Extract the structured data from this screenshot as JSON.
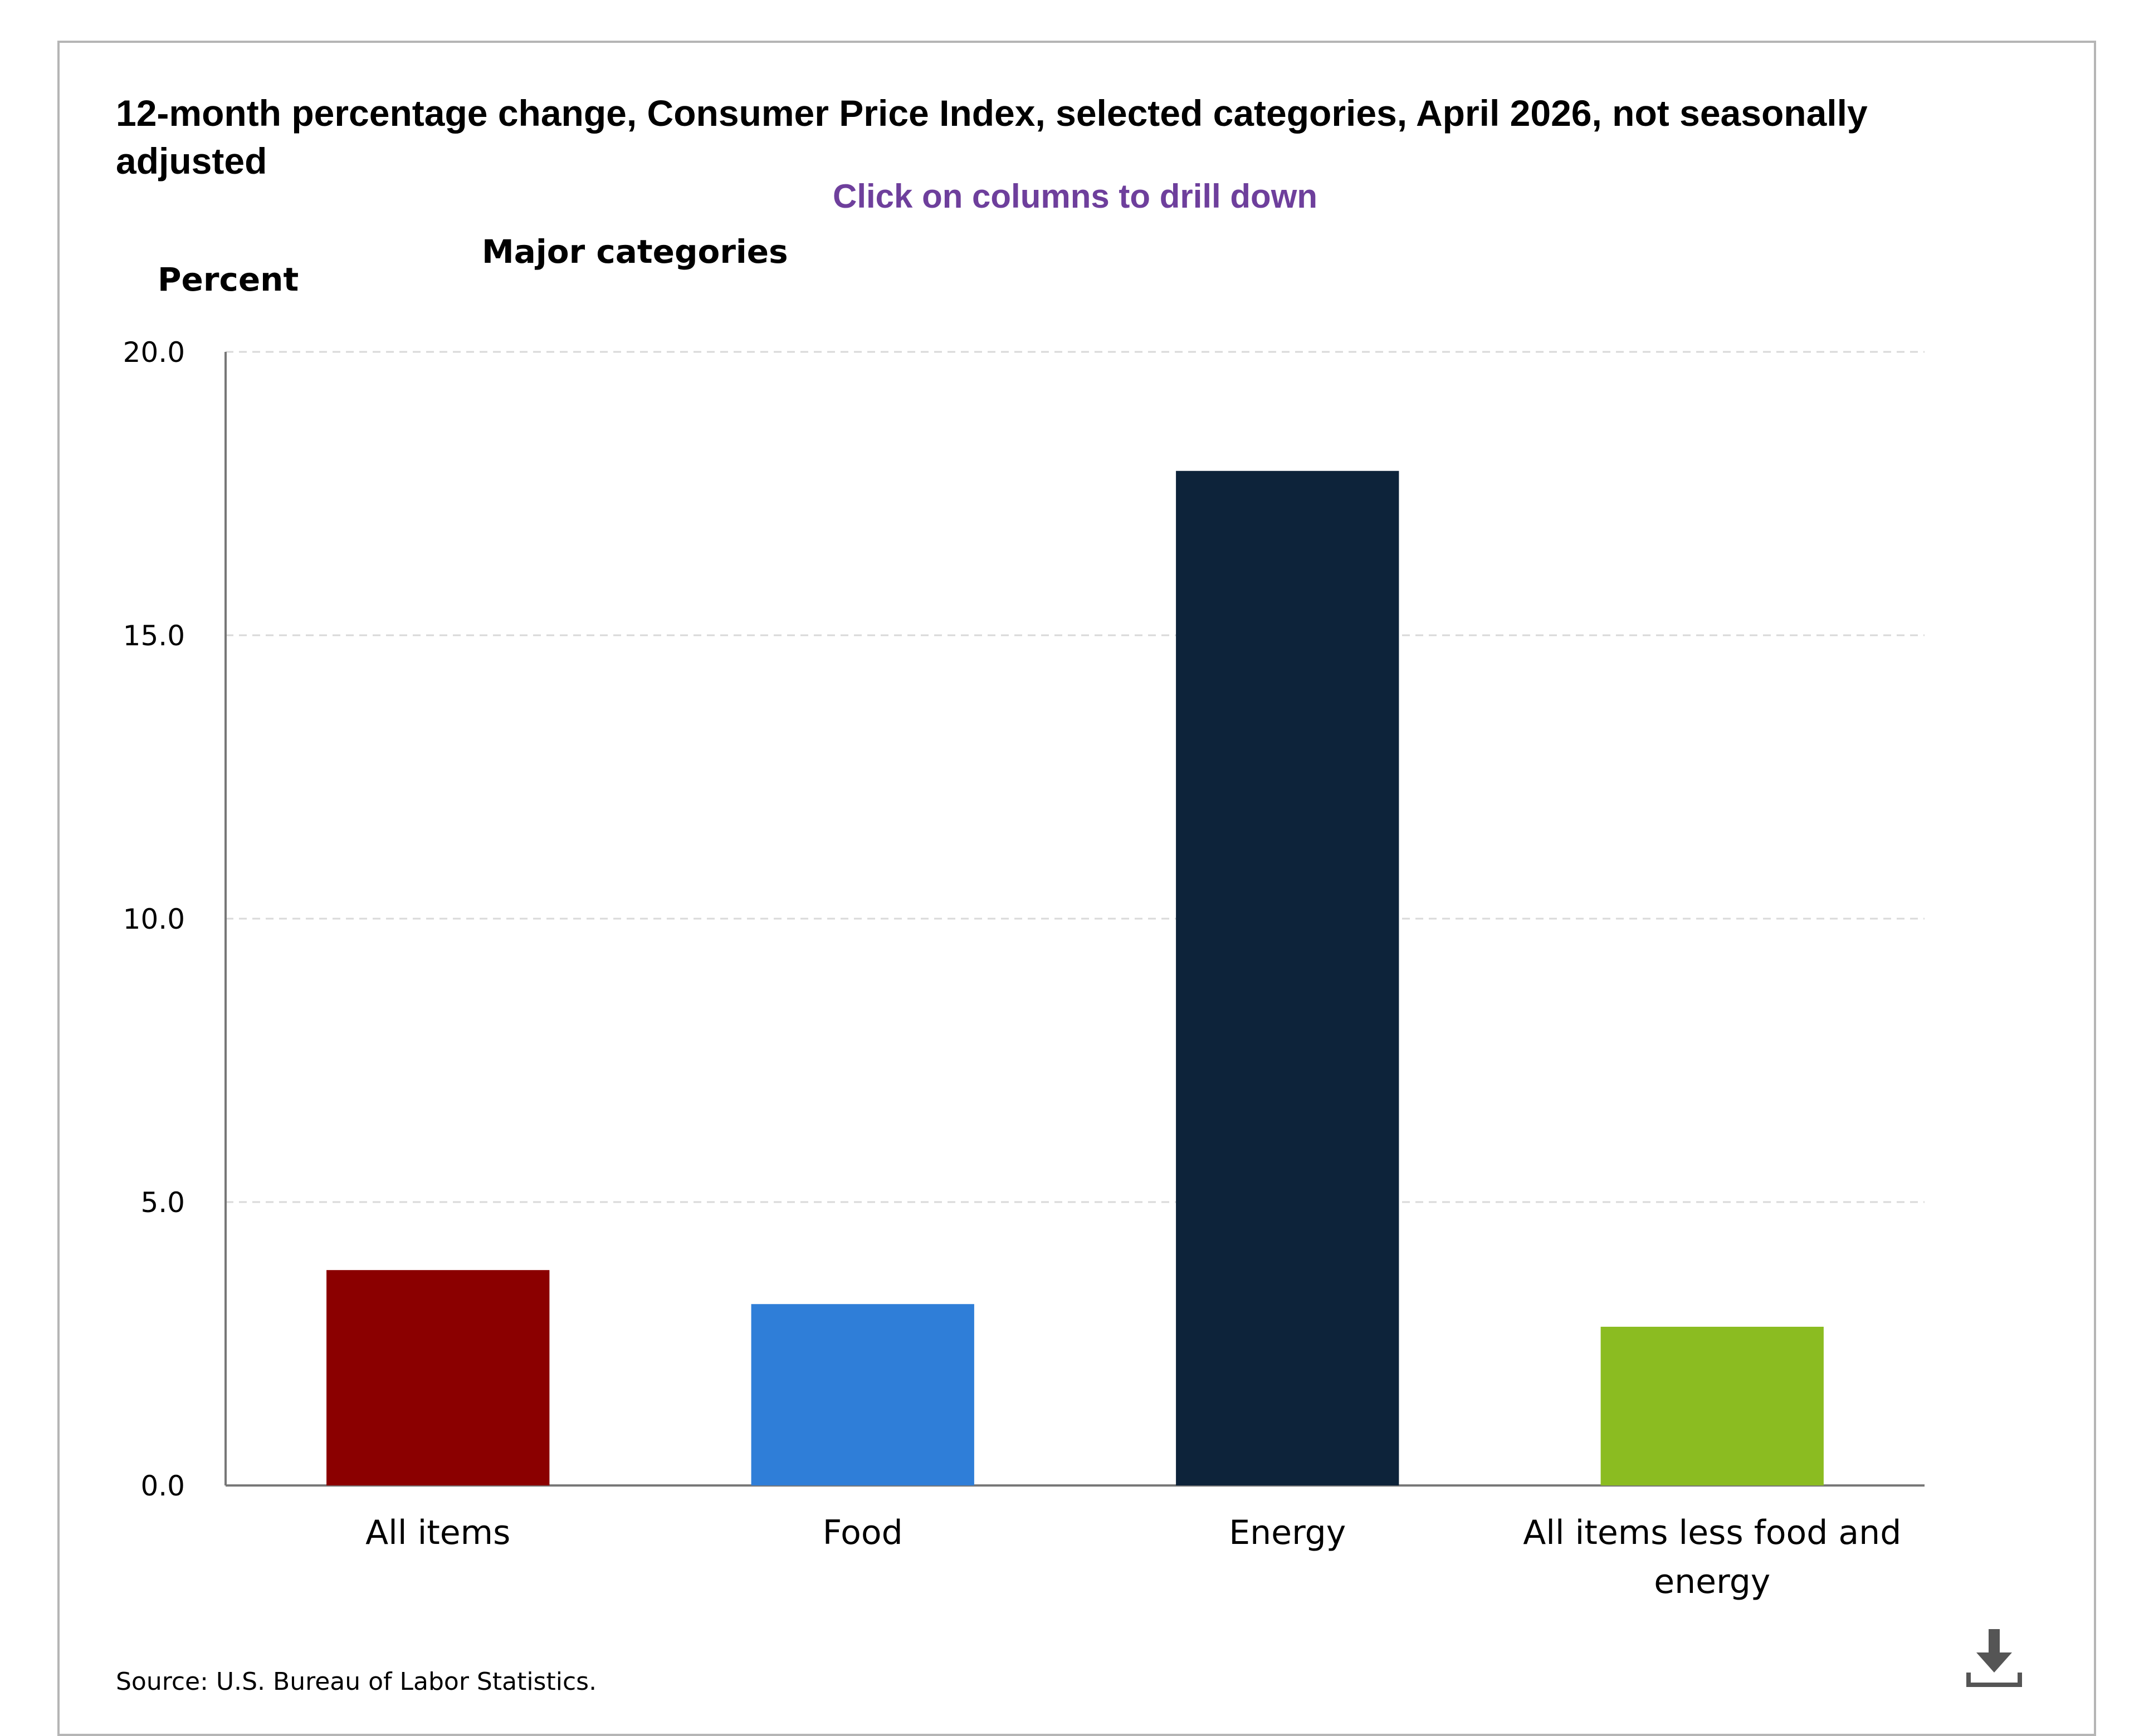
{
  "chart_data": {
    "type": "bar",
    "title": "12-month percentage change, Consumer Price Index, selected categories, April 2026, not seasonally adjusted",
    "subtitle": "Major categories",
    "hint": "Click on columns to drill down",
    "ylabel": "Percent",
    "ylim": [
      0,
      20
    ],
    "yticks": [
      "0.0",
      "5.0",
      "10.0",
      "15.0",
      "20.0"
    ],
    "categories": [
      [
        "All items"
      ],
      [
        "Food"
      ],
      [
        "Energy"
      ],
      [
        "All items less food and",
        "energy"
      ]
    ],
    "values": [
      3.8,
      3.2,
      17.9,
      2.8
    ],
    "colors": [
      "#8b0000",
      "#2f7ed8",
      "#0d233a",
      "#8bbc21"
    ],
    "grid": true,
    "source": "Source: U.S. Bureau of Labor Statistics."
  },
  "icons": {
    "download": "download-icon"
  }
}
